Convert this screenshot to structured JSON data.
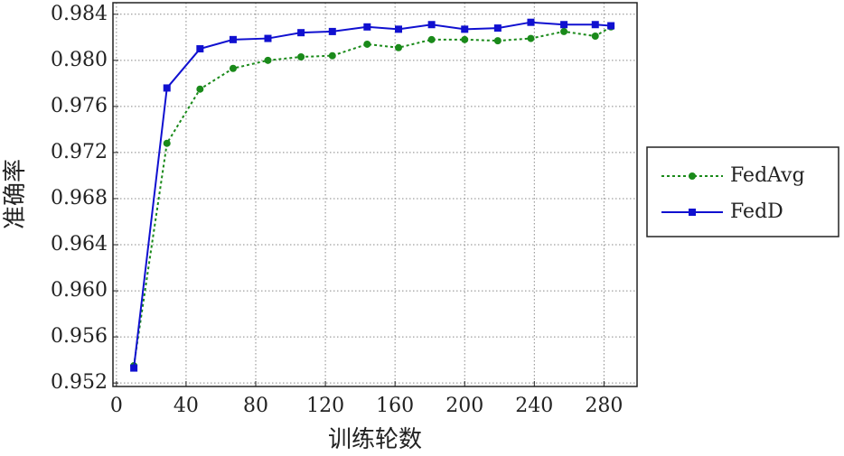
{
  "chart_data": {
    "type": "line",
    "xlabel": "训练轮数",
    "ylabel": "准确率",
    "xlim": [
      -2,
      299
    ],
    "xticks": [
      0,
      40,
      80,
      120,
      160,
      200,
      240,
      280
    ],
    "ylim": [
      0.9517,
      0.985
    ],
    "yticks": [
      0.952,
      0.956,
      {
        "value": 0.96,
        "label": "0.960"
      },
      0.964,
      0.968,
      0.972,
      0.976,
      {
        "value": 0.98,
        "label": "0.980"
      },
      0.984
    ],
    "grid": true,
    "legend": "right",
    "series": [
      {
        "name": "FedAvg",
        "color": "#1a8a1a",
        "marker": "circle",
        "dash": "dotted",
        "x": [
          10,
          29,
          48,
          67,
          87,
          106,
          124,
          144,
          162,
          181,
          200,
          219,
          238,
          257,
          275,
          284
        ],
        "values": [
          0.9535,
          0.9728,
          0.9775,
          0.9793,
          0.98,
          0.9803,
          0.9804,
          0.9814,
          0.9811,
          0.9818,
          0.9818,
          0.9817,
          0.9819,
          0.9825,
          0.9821,
          0.9829
        ]
      },
      {
        "name": "FedD",
        "color": "#1010d0",
        "marker": "square",
        "dash": "solid",
        "x": [
          10,
          29,
          48,
          67,
          87,
          106,
          124,
          144,
          162,
          181,
          200,
          219,
          238,
          257,
          275,
          284
        ],
        "values": [
          0.9533,
          0.9776,
          0.981,
          0.9818,
          0.9819,
          0.9824,
          0.9825,
          0.9829,
          0.9827,
          0.9831,
          0.9827,
          0.9828,
          0.9833,
          0.9831,
          0.9831,
          0.983
        ]
      }
    ]
  }
}
